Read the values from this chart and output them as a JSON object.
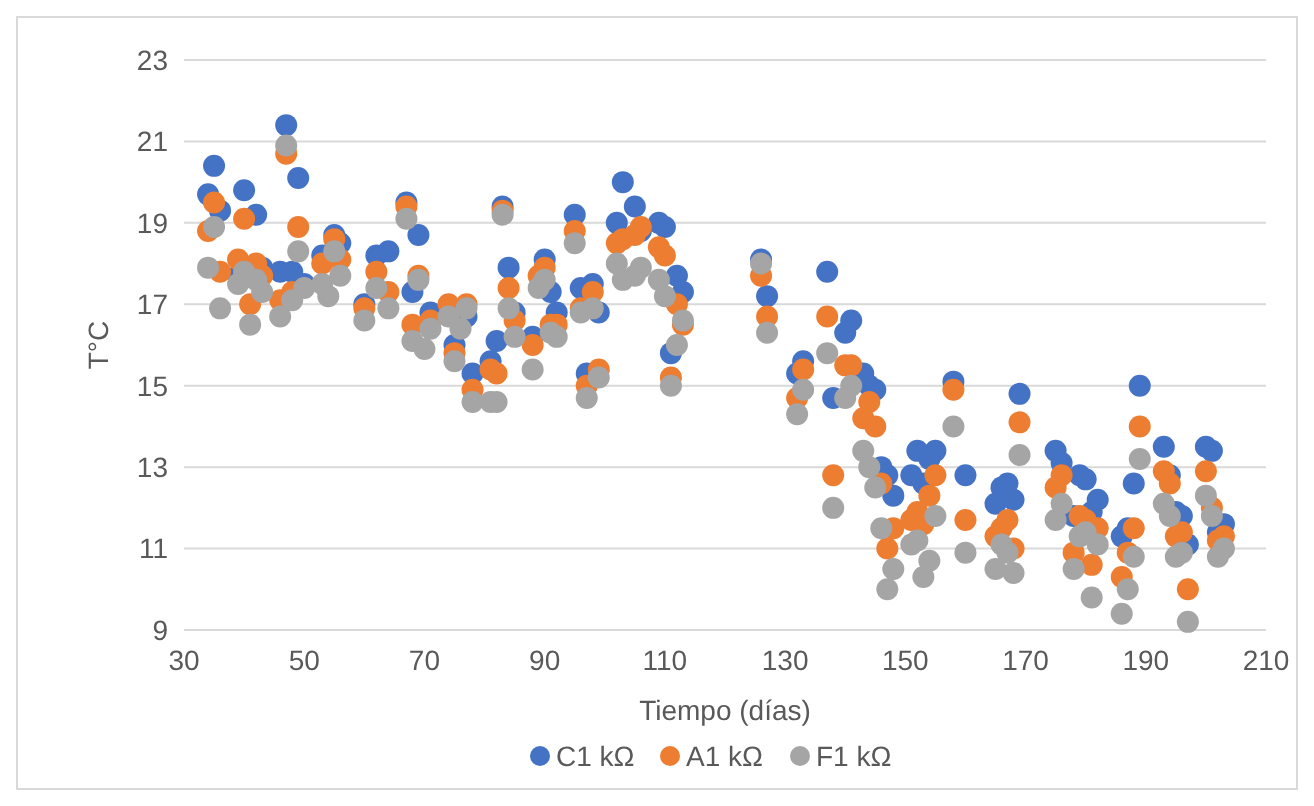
{
  "chart_data": {
    "type": "scatter",
    "xlabel": "Tiempo (días)",
    "ylabel": "T°C",
    "xlim": [
      30,
      210
    ],
    "xticks": [
      30,
      50,
      70,
      90,
      110,
      130,
      150,
      170,
      190,
      210
    ],
    "ylim": [
      9,
      23
    ],
    "yticks": [
      9,
      11,
      13,
      15,
      17,
      19,
      21,
      23
    ],
    "grid": "y",
    "legend": "bottom",
    "marker": "circle",
    "x": [
      34,
      35,
      36,
      39,
      40,
      41,
      42,
      43,
      46,
      47,
      48,
      49,
      50,
      53,
      54,
      55,
      56,
      60,
      62,
      64,
      67,
      68,
      69,
      70,
      71,
      74,
      75,
      76,
      77,
      78,
      81,
      82,
      83,
      84,
      85,
      88,
      89,
      90,
      91,
      92,
      95,
      96,
      97,
      98,
      99,
      102,
      103,
      105,
      106,
      109,
      110,
      111,
      112,
      113,
      126,
      127,
      132,
      133,
      137,
      138,
      140,
      141,
      143,
      144,
      145,
      146,
      147,
      148,
      151,
      152,
      153,
      154,
      155,
      158,
      160,
      165,
      166,
      167,
      168,
      169,
      175,
      176,
      178,
      179,
      180,
      181,
      182,
      186,
      187,
      188,
      189,
      193,
      194,
      195,
      196,
      197,
      200,
      201,
      202,
      203
    ],
    "series": [
      {
        "name": "C1 kΩ",
        "color": "#4472c4",
        "values": [
          19.7,
          20.4,
          19.3,
          17.7,
          19.8,
          null,
          19.2,
          17.9,
          17.8,
          21.4,
          17.8,
          20.1,
          17.5,
          18.2,
          null,
          18.7,
          18.5,
          17.0,
          18.2,
          18.3,
          19.5,
          17.3,
          18.7,
          null,
          16.8,
          null,
          16.0,
          null,
          16.7,
          15.3,
          15.6,
          16.1,
          19.4,
          17.9,
          16.8,
          16.2,
          null,
          18.1,
          17.3,
          16.8,
          19.2,
          17.4,
          15.3,
          17.5,
          16.8,
          19.0,
          20.0,
          19.4,
          18.8,
          19.0,
          18.9,
          15.8,
          17.7,
          17.3,
          18.1,
          17.2,
          15.3,
          15.6,
          17.8,
          14.7,
          16.3,
          16.6,
          15.3,
          15.0,
          14.9,
          13.0,
          12.8,
          12.3,
          12.8,
          13.4,
          12.6,
          13.2,
          13.4,
          15.1,
          12.8,
          12.1,
          12.5,
          12.6,
          12.2,
          14.8,
          13.4,
          13.1,
          11.8,
          12.8,
          12.7,
          11.9,
          12.2,
          11.3,
          11.5,
          12.6,
          15.0,
          13.5,
          12.8,
          11.9,
          11.8,
          11.1,
          13.5,
          13.4,
          11.4,
          11.6
        ]
      },
      {
        "name": "A1 kΩ",
        "color": "#ed7d31",
        "values": [
          18.8,
          19.5,
          17.8,
          18.1,
          19.1,
          17.0,
          18.0,
          17.7,
          17.1,
          20.7,
          17.3,
          18.9,
          null,
          18.0,
          null,
          18.6,
          18.1,
          16.9,
          17.8,
          17.3,
          19.4,
          16.5,
          17.7,
          null,
          16.6,
          17.0,
          15.8,
          null,
          17.0,
          14.9,
          15.4,
          15.3,
          19.3,
          17.4,
          16.6,
          16.0,
          17.7,
          17.9,
          16.5,
          16.5,
          18.8,
          16.9,
          15.0,
          17.3,
          15.4,
          18.5,
          18.6,
          18.7,
          18.9,
          18.4,
          18.2,
          15.2,
          17.0,
          16.5,
          17.7,
          16.7,
          14.7,
          15.4,
          16.7,
          12.8,
          15.5,
          15.5,
          14.2,
          14.6,
          14.0,
          12.6,
          11.0,
          11.5,
          11.7,
          11.9,
          11.6,
          12.3,
          12.8,
          14.9,
          11.7,
          11.3,
          11.5,
          11.7,
          11.0,
          14.1,
          12.5,
          12.8,
          10.9,
          11.8,
          11.7,
          10.6,
          11.5,
          10.3,
          10.9,
          11.5,
          14.0,
          12.9,
          12.6,
          11.3,
          11.4,
          10.0,
          12.9,
          12.0,
          11.2,
          11.3
        ]
      },
      {
        "name": "F1 kΩ",
        "color": "#a5a5a5",
        "values": [
          17.9,
          18.9,
          16.9,
          17.5,
          17.8,
          16.5,
          17.6,
          17.3,
          16.7,
          20.9,
          17.1,
          18.3,
          17.4,
          17.5,
          17.2,
          18.3,
          17.7,
          16.6,
          17.4,
          16.9,
          19.1,
          16.1,
          17.6,
          15.9,
          16.4,
          16.7,
          15.6,
          16.4,
          16.9,
          14.6,
          14.6,
          14.6,
          19.2,
          16.9,
          16.2,
          15.4,
          17.4,
          17.6,
          16.3,
          16.2,
          18.5,
          16.8,
          14.7,
          16.9,
          15.2,
          18.0,
          17.6,
          17.7,
          17.9,
          17.6,
          17.2,
          15.0,
          16.0,
          16.6,
          18.0,
          16.3,
          14.3,
          14.9,
          15.8,
          12.0,
          14.7,
          15.0,
          13.4,
          13.0,
          12.5,
          11.5,
          10.0,
          10.5,
          11.1,
          11.2,
          10.3,
          10.7,
          11.8,
          14.0,
          10.9,
          10.5,
          11.1,
          10.9,
          10.4,
          13.3,
          11.7,
          12.1,
          10.5,
          11.3,
          11.4,
          9.8,
          11.1,
          9.4,
          10.0,
          10.8,
          13.2,
          12.1,
          11.8,
          10.8,
          10.9,
          9.2,
          12.3,
          11.8,
          10.8,
          11.0
        ]
      }
    ]
  }
}
